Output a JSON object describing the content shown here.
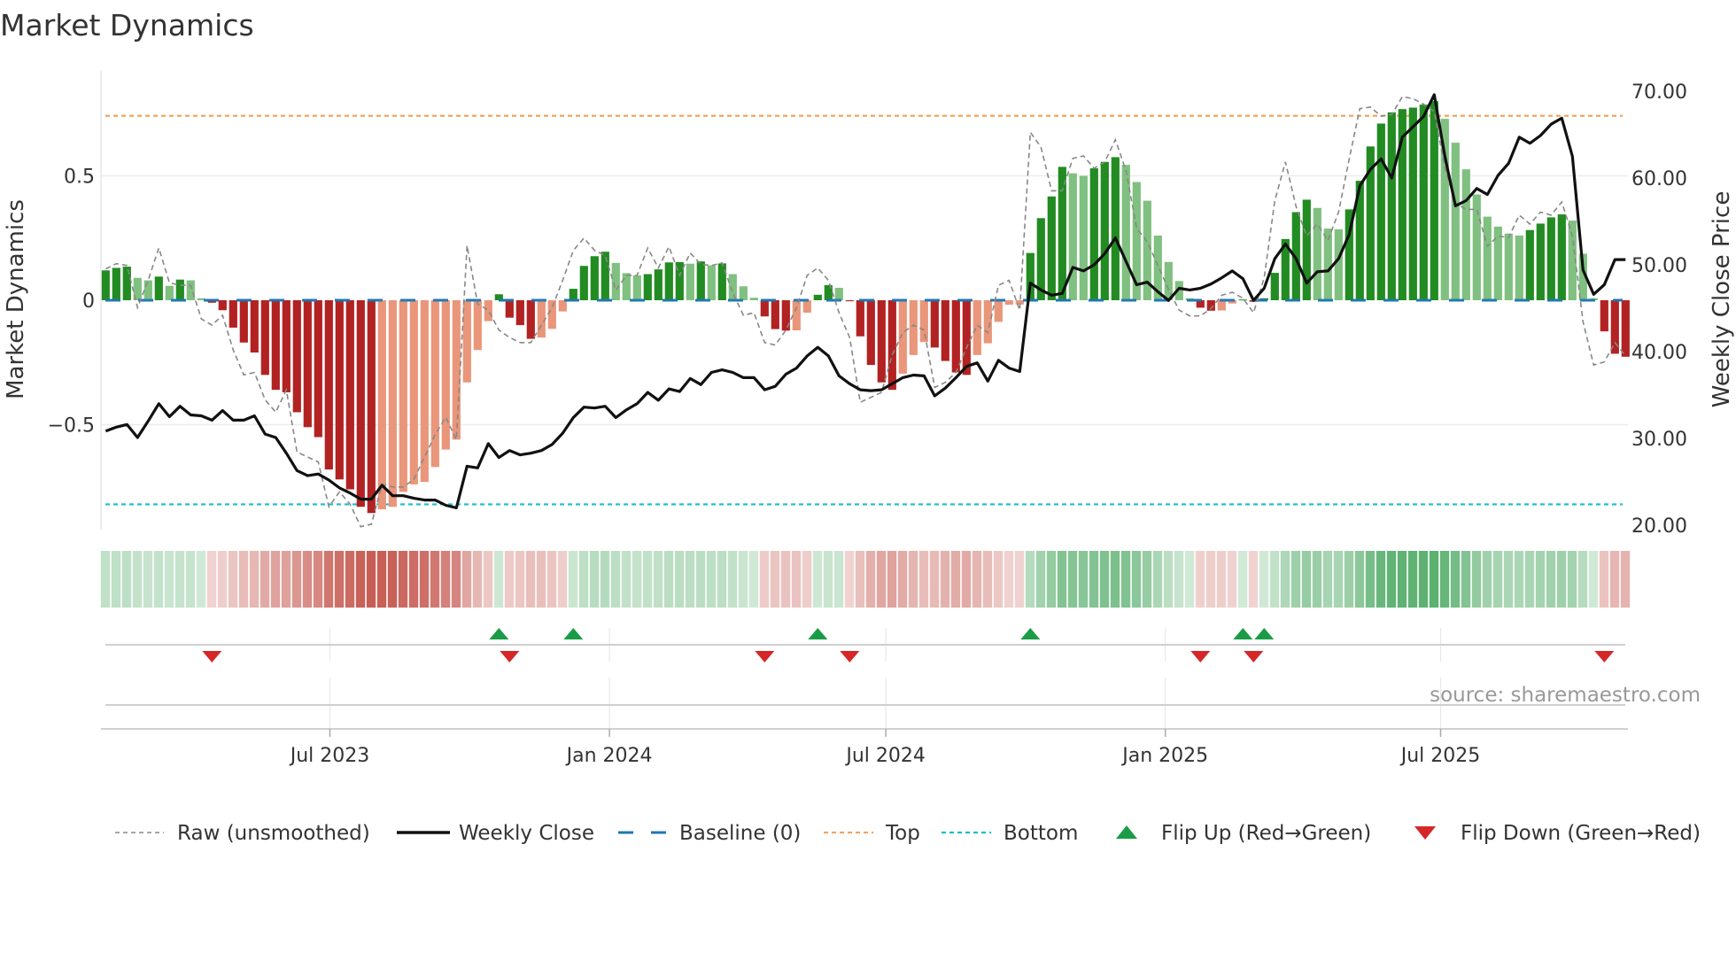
{
  "title": "Market Dynamics",
  "source": "source: sharemaestro.com",
  "colors": {
    "up_strong": "#228b22",
    "up_weak": "#80c080",
    "down_strong": "#b22222",
    "down_weak": "#e9967a",
    "raw": "#888888",
    "close": "#111111",
    "baseline": "#1f77b4",
    "top": "#f4a460",
    "bottom": "#17becf",
    "flip_up": "#1a9c47",
    "flip_down": "#d62728"
  },
  "legend": [
    {
      "label": "Raw (unsmoothed)",
      "kind": "raw"
    },
    {
      "label": "Weekly Close",
      "kind": "close"
    },
    {
      "label": "Baseline (0)",
      "kind": "baseline"
    },
    {
      "label": "Top",
      "kind": "top"
    },
    {
      "label": "Bottom",
      "kind": "bottom"
    },
    {
      "label": "Flip Up (Red→Green)",
      "kind": "flip_up"
    },
    {
      "label": "Flip Down (Green→Red)",
      "kind": "flip_down"
    }
  ],
  "chart_data": {
    "type": "bar",
    "title": "Market Dynamics",
    "ylabel": "Market Dynamics",
    "ylabel_right": "Weekly Close Price",
    "x_start": "2023-02-03",
    "x_step_days": 7,
    "ylim": [
      -0.92,
      0.92
    ],
    "ylim_right": [
      19.5,
      72.3
    ],
    "yticks": [
      {
        "v": 0.5,
        "label": "0.5"
      },
      {
        "v": 0,
        "label": "0"
      },
      {
        "v": -0.5,
        "label": "−0.5"
      }
    ],
    "yticks_right": [
      {
        "v": 70,
        "label": "70.00"
      },
      {
        "v": 60,
        "label": "60.00"
      },
      {
        "v": 50,
        "label": "50.00"
      },
      {
        "v": 40,
        "label": "40.00"
      },
      {
        "v": 30,
        "label": "30.00"
      },
      {
        "v": 20,
        "label": "20.00"
      }
    ],
    "xticks": [
      {
        "week": 21.1,
        "label": "Jul 2023"
      },
      {
        "week": 47.4,
        "label": "Jan 2024"
      },
      {
        "week": 73.4,
        "label": "Jul 2024"
      },
      {
        "week": 99.7,
        "label": "Jan 2025"
      },
      {
        "week": 125.6,
        "label": "Jul 2025"
      }
    ],
    "top_level": 0.741,
    "bottom_level": -0.82,
    "baseline": 0,
    "momentum": [
      0.12,
      0.13,
      0.135,
      0.09,
      0.08,
      0.095,
      0.058,
      0.083,
      0.08,
      0.008,
      -0.01,
      -0.04,
      -0.11,
      -0.17,
      -0.21,
      -0.3,
      -0.36,
      -0.37,
      -0.45,
      -0.51,
      -0.55,
      -0.68,
      -0.72,
      -0.76,
      -0.83,
      -0.855,
      -0.84,
      -0.83,
      -0.77,
      -0.74,
      -0.73,
      -0.67,
      -0.6,
      -0.56,
      -0.33,
      -0.2,
      -0.084,
      0.024,
      -0.07,
      -0.1,
      -0.155,
      -0.15,
      -0.115,
      -0.045,
      0.046,
      0.138,
      0.177,
      0.195,
      0.15,
      0.109,
      0.1,
      0.105,
      0.124,
      0.152,
      0.153,
      0.147,
      0.156,
      0.14,
      0.148,
      0.105,
      0.056,
      0.01,
      -0.065,
      -0.116,
      -0.122,
      -0.121,
      -0.05,
      0.022,
      0.061,
      0.05,
      -0.004,
      -0.145,
      -0.26,
      -0.33,
      -0.36,
      -0.295,
      -0.22,
      -0.168,
      -0.19,
      -0.244,
      -0.29,
      -0.3,
      -0.22,
      -0.173,
      -0.087,
      -0.018,
      -0.017,
      0.19,
      0.33,
      0.417,
      0.536,
      0.51,
      0.5,
      0.53,
      0.556,
      0.575,
      0.544,
      0.475,
      0.4,
      0.26,
      0.154,
      0.077,
      0.008,
      -0.03,
      -0.042,
      -0.041,
      -0.013,
      0.003,
      -0.006,
      0.008,
      0.11,
      0.246,
      0.354,
      0.404,
      0.371,
      0.288,
      0.285,
      0.365,
      0.48,
      0.618,
      0.71,
      0.755,
      0.768,
      0.774,
      0.786,
      0.8,
      0.729,
      0.633,
      0.526,
      0.425,
      0.336,
      0.296,
      0.268,
      0.26,
      0.282,
      0.308,
      0.333,
      0.345,
      0.32,
      0.187,
      0.008,
      -0.125,
      -0.215,
      -0.227
    ],
    "raw": [
      0.126,
      0.147,
      0.14,
      -0.03,
      0.08,
      0.21,
      0.07,
      0.06,
      0.06,
      -0.075,
      -0.1,
      -0.06,
      -0.2,
      -0.3,
      -0.29,
      -0.4,
      -0.45,
      -0.36,
      -0.61,
      -0.63,
      -0.65,
      -0.83,
      -0.77,
      -0.82,
      -0.91,
      -0.9,
      -0.74,
      -0.75,
      -0.75,
      -0.72,
      -0.63,
      -0.54,
      -0.47,
      -0.56,
      0.22,
      -0.015,
      -0.04,
      -0.12,
      -0.15,
      -0.17,
      -0.17,
      -0.1,
      -0.03,
      0.08,
      0.2,
      0.25,
      0.2,
      0.18,
      0.04,
      0.1,
      0.1,
      0.21,
      0.13,
      0.215,
      0.1,
      0.19,
      0.144,
      0.14,
      0.15,
      0.03,
      -0.06,
      -0.05,
      -0.17,
      -0.18,
      -0.12,
      -0.03,
      0.1,
      0.13,
      0.08,
      -0.05,
      -0.15,
      -0.41,
      -0.39,
      -0.37,
      -0.22,
      -0.13,
      -0.1,
      -0.12,
      -0.35,
      -0.33,
      -0.29,
      -0.19,
      -0.1,
      -0.13,
      0.06,
      0.08,
      -0.04,
      0.675,
      0.615,
      0.44,
      0.44,
      0.57,
      0.58,
      0.53,
      0.556,
      0.645,
      0.52,
      0.29,
      0.235,
      0.14,
      0.044,
      -0.04,
      -0.063,
      -0.063,
      -0.033,
      0.02,
      0.032,
      0.008,
      -0.05,
      0.09,
      0.4,
      0.556,
      0.377,
      0.258,
      0.306,
      0.24,
      0.354,
      0.568,
      0.77,
      0.776,
      0.74,
      0.746,
      0.818,
      0.81,
      0.788,
      0.758,
      0.53,
      0.39,
      0.365,
      0.365,
      0.217,
      0.258,
      0.252,
      0.342,
      0.306,
      0.354,
      0.342,
      0.395,
      0.258,
      -0.087,
      -0.26,
      -0.248,
      -0.17,
      -0.224
    ],
    "weekly_close": [
      30.85,
      31.3,
      31.6,
      30.1,
      32.0,
      34.0,
      32.5,
      33.7,
      32.7,
      32.6,
      32.1,
      33.2,
      32.1,
      32.1,
      32.6,
      30.5,
      30.1,
      28.3,
      26.3,
      25.7,
      25.9,
      25.2,
      24.3,
      23.7,
      23.0,
      23.0,
      24.6,
      23.4,
      23.4,
      23.1,
      22.9,
      22.9,
      22.3,
      22.0,
      26.8,
      26.6,
      29.4,
      27.8,
      28.6,
      28.1,
      28.3,
      28.6,
      29.3,
      30.6,
      32.4,
      33.6,
      33.5,
      33.7,
      32.4,
      33.3,
      34.0,
      35.3,
      34.4,
      35.7,
      35.4,
      36.9,
      36.2,
      37.6,
      37.9,
      37.6,
      37.0,
      37.0,
      35.6,
      36.0,
      37.4,
      38.1,
      39.5,
      40.5,
      39.5,
      37.2,
      36.3,
      35.6,
      35.5,
      35.6,
      36.3,
      37.0,
      37.3,
      37.2,
      34.9,
      35.8,
      37.0,
      38.3,
      38.7,
      36.6,
      39.0,
      38.1,
      37.7,
      47.9,
      47.1,
      46.5,
      46.7,
      49.7,
      49.3,
      50.0,
      51.3,
      53.1,
      50.4,
      47.7,
      48.0,
      46.9,
      45.9,
      47.3,
      47.1,
      47.3,
      47.8,
      48.5,
      49.3,
      48.4,
      45.9,
      47.3,
      50.7,
      52.4,
      50.7,
      47.9,
      49.2,
      49.3,
      50.7,
      53.5,
      59.1,
      61.0,
      62.2,
      60.0,
      64.7,
      65.9,
      67.1,
      69.6,
      62.5,
      56.8,
      57.4,
      58.8,
      58.1,
      60.3,
      61.7,
      64.7,
      64.0,
      64.9,
      66.2,
      66.9,
      62.5,
      49.4,
      46.6,
      47.7,
      50.6,
      50.6
    ]
  }
}
